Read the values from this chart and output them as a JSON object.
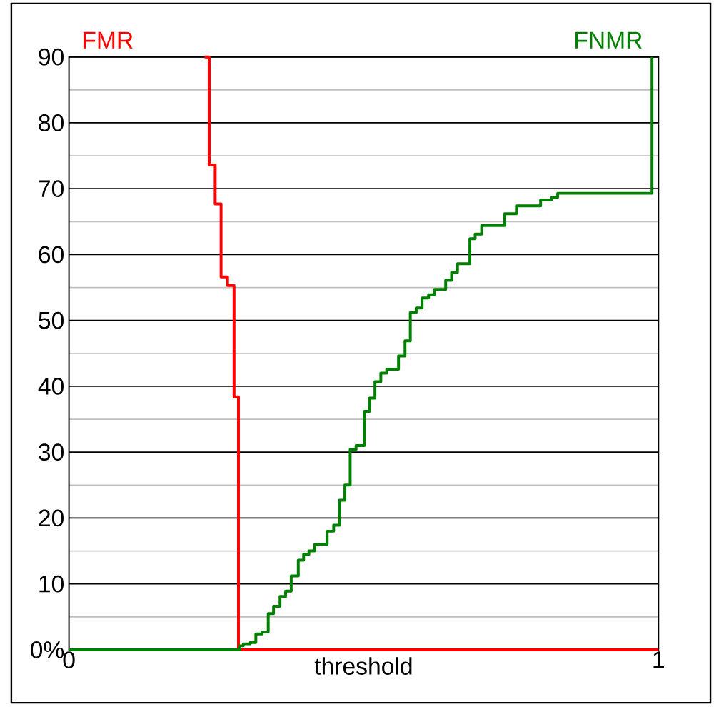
{
  "chart_data": {
    "type": "step",
    "xlabel": "threshold",
    "xlim": [
      0,
      1
    ],
    "xticks": [
      0,
      1
    ],
    "ylim": [
      0,
      90
    ],
    "yticks": [
      {
        "value": 0,
        "label": "0%"
      },
      {
        "value": 5,
        "label": null
      },
      10,
      {
        "value": 15,
        "label": null
      },
      20,
      {
        "value": 25,
        "label": null
      },
      30,
      {
        "value": 35,
        "label": null
      },
      40,
      {
        "value": 45,
        "label": null
      },
      50,
      {
        "value": 55,
        "label": null
      },
      60,
      {
        "value": 65,
        "label": null
      },
      70,
      {
        "value": 75,
        "label": null
      },
      80,
      {
        "value": 85,
        "label": null
      },
      90
    ],
    "grid": "y",
    "series": [
      {
        "name": "FMR",
        "color": "#ff0000",
        "x": [
          0.23,
          0.238,
          0.248,
          0.258,
          0.269,
          0.28,
          0.2875,
          1
        ],
        "values": [
          90,
          73.6,
          67.7,
          56.6,
          55.3,
          38.4,
          0,
          0
        ]
      },
      {
        "name": "FNMR",
        "color": "#008000",
        "x": [
          0,
          0.29,
          0.2957,
          0.3076,
          0.317,
          0.3275,
          0.338,
          0.347,
          0.358,
          0.3675,
          0.377,
          0.389,
          0.398,
          0.407,
          0.417,
          0.438,
          0.449,
          0.459,
          0.468,
          0.477,
          0.487,
          0.501,
          0.51,
          0.519,
          0.529,
          0.539,
          0.559,
          0.57,
          0.579,
          0.589,
          0.599,
          0.61,
          0.62,
          0.639,
          0.649,
          0.659,
          0.68,
          0.689,
          0.7,
          0.739,
          0.759,
          0.8,
          0.819,
          0.829,
          0.989
        ],
        "values": [
          0,
          0.6,
          0.9,
          1.1,
          2.4,
          2.7,
          5.5,
          6.6,
          8.1,
          8.9,
          11.2,
          13.6,
          14.5,
          15.0,
          16.0,
          18.0,
          18.9,
          22.7,
          25.0,
          30.4,
          31.0,
          36.2,
          38.2,
          40.7,
          42.0,
          42.6,
          44.6,
          46.9,
          51.2,
          51.9,
          53.4,
          53.9,
          54.7,
          56.1,
          57.3,
          58.6,
          62.4,
          63.1,
          64.4,
          66.2,
          67.4,
          68.3,
          68.7,
          69.3,
          90
        ]
      }
    ]
  }
}
